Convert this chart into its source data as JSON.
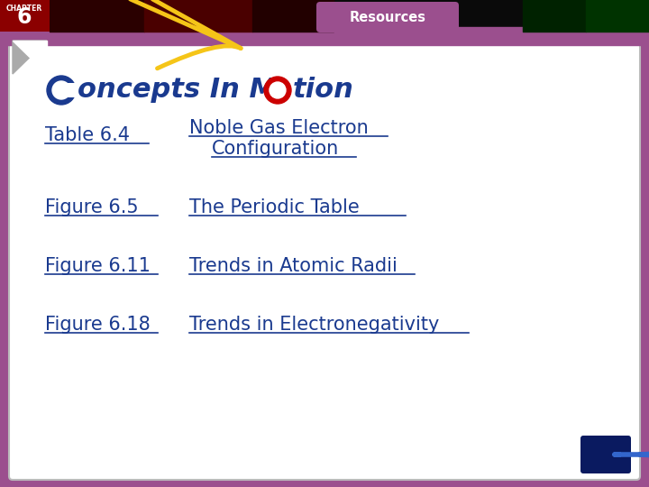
{
  "bg_outer": "#9b4f8e",
  "bg_inner": "#ffffff",
  "resources_text": "Resources",
  "chapter_text": "CHAPTER",
  "chapter_num": "6",
  "links": [
    {
      "label": "Table 6.4",
      "desc1": "Noble Gas Electron",
      "desc2": "Configuration"
    },
    {
      "label": "Figure 6.5",
      "desc1": "The Periodic Table",
      "desc2": ""
    },
    {
      "label": "Figure 6.11",
      "desc1": "Trends in Atomic Radii",
      "desc2": ""
    },
    {
      "label": "Figure 6.18",
      "desc1": "Trends in Electronegativity",
      "desc2": ""
    }
  ],
  "link_color": "#1a3a8f",
  "text_fontsize": 15,
  "arrow_color": "#f5c518",
  "logo_o_color": "#cc0000",
  "logo_text_color": "#1a3a8f"
}
